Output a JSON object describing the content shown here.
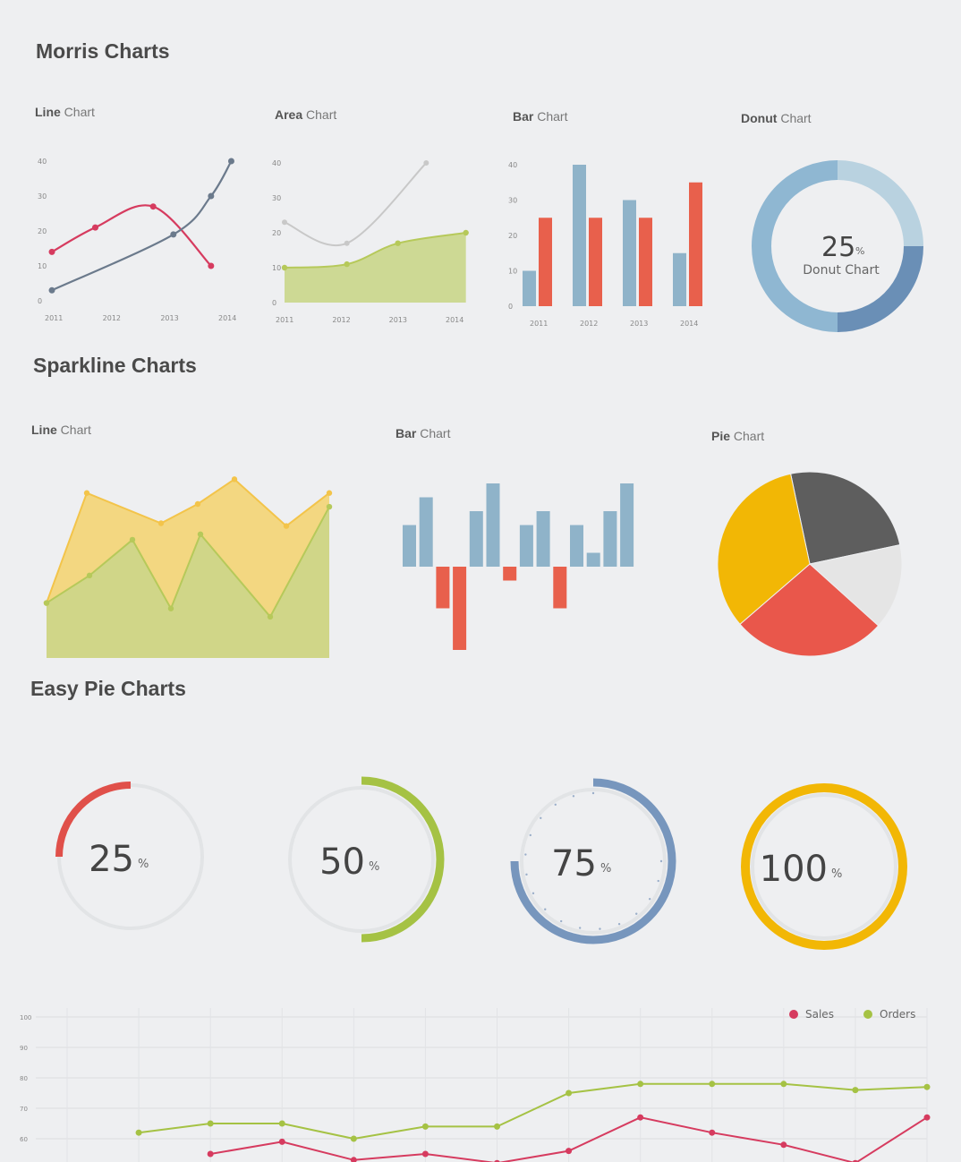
{
  "sections": {
    "morris": "Morris Charts",
    "sparkline": "Sparkline Charts",
    "easy_pie": "Easy Pie Charts"
  },
  "colors": {
    "red": "#d63b5f",
    "slate": "#6b7a8c",
    "green": "#b6c95a",
    "green_fill": "#c9d68a",
    "yellow": "#f3c44a",
    "yellow_fill": "#f2d57a",
    "blue": "#8fb3c9",
    "orange": "#e8604c",
    "pie_yellow": "#f2b705",
    "pie_red": "#e9574b",
    "pie_gray": "#5e5e5e",
    "pie_light": "#e5e5e5",
    "donut_light": "#b9d2e0",
    "donut_mid": "#8fb7d2",
    "donut_dark": "#6a8fb6",
    "easy_red": "#e0504a",
    "easy_green": "#a5c244",
    "easy_blue": "#7796bd",
    "easy_yellow": "#f2b705",
    "track": "#e2e4e6"
  },
  "chart_data": [
    {
      "id": "morris-line",
      "type": "line",
      "title_bold": "Line",
      "title_rest": "Chart",
      "x": [
        "2011",
        "2012",
        "2013",
        "2014"
      ],
      "y_ticks": [
        "0",
        "10",
        "20",
        "30",
        "40"
      ],
      "ylim": [
        0,
        40
      ],
      "series": [
        {
          "x": [
            2011,
            2011.75,
            2012.75,
            2013.75
          ],
          "values": [
            14,
            21,
            27,
            10
          ],
          "color": "#d63b5f"
        },
        {
          "x": [
            2011,
            2013.1,
            2013.75,
            2014.1
          ],
          "values": [
            3,
            19,
            30,
            40
          ],
          "color": "#6b7a8c"
        }
      ]
    },
    {
      "id": "morris-area",
      "type": "area",
      "title_bold": "Area",
      "title_rest": "Chart",
      "x": [
        "2011",
        "2012",
        "2013",
        "2014"
      ],
      "y_ticks": [
        "0",
        "10",
        "20",
        "30",
        "40"
      ],
      "ylim": [
        0,
        40
      ],
      "series": [
        {
          "x": [
            2011,
            2012.1,
            2013,
            2014.2
          ],
          "values": [
            10,
            11,
            17,
            20
          ],
          "color": "#b6c95a",
          "fill": true
        },
        {
          "x": [
            2011,
            2012.1,
            2013.5
          ],
          "values": [
            23,
            17,
            40
          ],
          "color": "#c8c8c8",
          "fill": false
        }
      ]
    },
    {
      "id": "morris-bar",
      "type": "bar",
      "title_bold": "Bar",
      "title_rest": "Chart",
      "categories": [
        "2011",
        "2012",
        "2013",
        "2014"
      ],
      "y_ticks": [
        "0",
        "10",
        "20",
        "30",
        "40"
      ],
      "ylim": [
        0,
        40
      ],
      "series": [
        {
          "values": [
            10,
            40,
            30,
            15
          ],
          "color": "#8fb3c9"
        },
        {
          "values": [
            25,
            25,
            25,
            35
          ],
          "color": "#e8604c"
        }
      ]
    },
    {
      "id": "morris-donut",
      "type": "pie",
      "title_bold": "Donut",
      "title_rest": "Chart",
      "center_value": "25",
      "center_unit": "%",
      "center_label": "Donut Chart",
      "values": [
        25,
        25,
        25,
        25
      ],
      "colors": [
        "#b9d2e0",
        "#6a8fb6",
        "#8fb7d2",
        "#8fb7d2"
      ]
    },
    {
      "id": "spark-line",
      "type": "area",
      "title_bold": "Line",
      "title_rest": "Chart",
      "series": [
        {
          "values": [
            2,
            6,
            4.9,
            5.6,
            6.5,
            4.8,
            6
          ],
          "color": "#f3c44a",
          "fill": "#f2d57a"
        },
        {
          "values": [
            2,
            3,
            4.3,
            1.8,
            4.5,
            1.5,
            5.5
          ],
          "color": "#b6c95a",
          "fill": "#c9d68a"
        }
      ]
    },
    {
      "id": "spark-bar",
      "type": "bar",
      "title_bold": "Bar",
      "title_rest": "Chart",
      "values": [
        3,
        5,
        -3,
        -6,
        4,
        6,
        -1,
        3,
        4,
        -3,
        3,
        1,
        4,
        6
      ],
      "pos_color": "#8fb3c9",
      "neg_color": "#e8604c"
    },
    {
      "id": "spark-pie",
      "type": "pie",
      "title_bold": "Pie",
      "title_rest": "Chart",
      "values": [
        33,
        25,
        15,
        27
      ],
      "colors": [
        "#f2b705",
        "#5e5e5e",
        "#e5e5e5",
        "#e9574b"
      ]
    },
    {
      "id": "easy-pies",
      "type": "pie",
      "items": [
        {
          "value": 25,
          "label": "25",
          "unit": "%",
          "color": "#e0504a"
        },
        {
          "value": 50,
          "label": "50",
          "unit": "%",
          "color": "#a5c244"
        },
        {
          "value": 75,
          "label": "75",
          "unit": "%",
          "color": "#7796bd"
        },
        {
          "value": 100,
          "label": "100",
          "unit": "%",
          "color": "#f2b705"
        }
      ]
    },
    {
      "id": "bottom-line",
      "type": "line",
      "y_ticks": [
        "100",
        "90",
        "80",
        "70",
        "60"
      ],
      "ylim": [
        55,
        105
      ],
      "legend": [
        {
          "name": "Sales",
          "color": "#d63b5f"
        },
        {
          "name": "Orders",
          "color": "#a5c244"
        }
      ],
      "series": [
        {
          "name": "Orders",
          "values": [
            null,
            62,
            65,
            65,
            60,
            64,
            64,
            75,
            78,
            78,
            78,
            76,
            77
          ],
          "color": "#a5c244"
        },
        {
          "name": "Sales",
          "values": [
            null,
            null,
            55,
            59,
            53,
            55,
            52,
            56,
            67,
            62,
            58,
            52,
            67
          ],
          "color": "#d63b5f"
        }
      ]
    }
  ]
}
